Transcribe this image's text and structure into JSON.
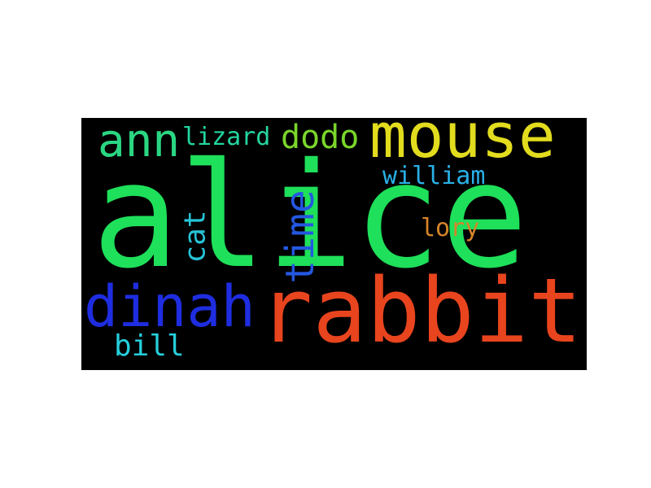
{
  "words": [
    {
      "text": "alice",
      "color": "#1ee05a"
    },
    {
      "text": "rabbit",
      "color": "#e8441e"
    },
    {
      "text": "mouse",
      "color": "#e2dc1e"
    },
    {
      "text": "dinah",
      "color": "#1e2de0"
    },
    {
      "text": "ann",
      "color": "#2ad682"
    },
    {
      "text": "time",
      "color": "#2457e0"
    },
    {
      "text": "dodo",
      "color": "#7ad62a"
    },
    {
      "text": "cat",
      "color": "#26c3d6"
    },
    {
      "text": "bill",
      "color": "#26cfdc"
    },
    {
      "text": "lizard",
      "color": "#24d6a0"
    },
    {
      "text": "william",
      "color": "#2ab0e6"
    },
    {
      "text": "lory",
      "color": "#d6842a"
    }
  ]
}
